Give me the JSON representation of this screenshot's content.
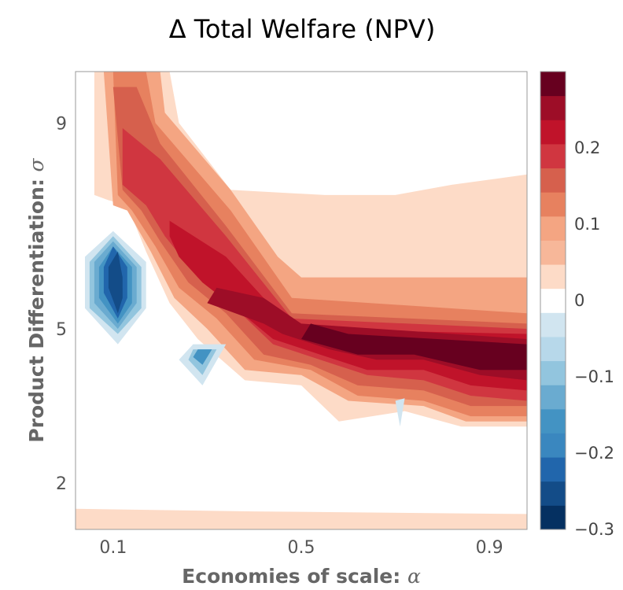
{
  "chart_data": {
    "type": "contour",
    "title": "Δ Total Welfare (NPV)",
    "xlabel_text": "Economies of scale: ",
    "xlabel_symbol": "α",
    "ylabel_text": "Product Differentiation: ",
    "ylabel_symbol": "σ",
    "x_ticks": [
      0.1,
      0.5,
      0.9
    ],
    "x_tick_labels": [
      "0.1",
      "0.5",
      "0.9"
    ],
    "xlim": [
      0.02,
      0.98
    ],
    "y_ticks": [
      2,
      5,
      9
    ],
    "y_tick_labels": [
      "2",
      "5",
      "9"
    ],
    "ylim": [
      1.1,
      10.0
    ],
    "colorbar": {
      "range": [
        -0.3,
        0.3
      ],
      "ticks": [
        -0.3,
        -0.2,
        -0.1,
        0,
        0.1,
        0.2
      ],
      "tick_labels": [
        "−0.3",
        "−0.2",
        "−0.1",
        "0",
        "0.1",
        "0.2"
      ],
      "colors": [
        "#053061",
        "#134c88",
        "#2166ac",
        "#3a87bf",
        "#4393c3",
        "#6aabd0",
        "#92c5de",
        "#b7d8ea",
        "#d1e5f0",
        "#ffffff",
        "#fddbc7",
        "#f7b799",
        "#f4a582",
        "#e7815f",
        "#d6604d",
        "#d03640",
        "#c0132a",
        "#9d0d27",
        "#67001f"
      ]
    },
    "contour_levels": [
      {
        "value": 0.033,
        "color": "#fddbc7",
        "region": [
          [
            0.06,
            10.0
          ],
          [
            0.22,
            10.0
          ],
          [
            0.24,
            9.0
          ],
          [
            0.35,
            7.7
          ],
          [
            0.55,
            7.6
          ],
          [
            0.7,
            7.6
          ],
          [
            0.82,
            7.8
          ],
          [
            0.98,
            8.0
          ],
          [
            0.98,
            3.1
          ],
          [
            0.84,
            3.1
          ],
          [
            0.72,
            3.4
          ],
          [
            0.58,
            3.2
          ],
          [
            0.5,
            3.9
          ],
          [
            0.38,
            4.0
          ],
          [
            0.28,
            4.8
          ],
          [
            0.22,
            5.5
          ],
          [
            0.17,
            6.5
          ],
          [
            0.13,
            7.4
          ],
          [
            0.09,
            7.5
          ],
          [
            0.06,
            7.6
          ]
        ]
      },
      {
        "value": 0.066,
        "color": "#f4a582",
        "region": [
          [
            0.08,
            10.0
          ],
          [
            0.2,
            10.0
          ],
          [
            0.21,
            9.2
          ],
          [
            0.35,
            7.7
          ],
          [
            0.45,
            6.4
          ],
          [
            0.5,
            6.0
          ],
          [
            0.98,
            6.0
          ],
          [
            0.98,
            3.2
          ],
          [
            0.85,
            3.2
          ],
          [
            0.76,
            3.5
          ],
          [
            0.6,
            3.6
          ],
          [
            0.5,
            4.1
          ],
          [
            0.38,
            4.2
          ],
          [
            0.3,
            5.0
          ],
          [
            0.23,
            5.6
          ],
          [
            0.18,
            6.5
          ],
          [
            0.13,
            7.3
          ],
          [
            0.1,
            7.4
          ]
        ]
      },
      {
        "value": 0.1,
        "color": "#e7815f",
        "region": [
          [
            0.1,
            10.0
          ],
          [
            0.17,
            10.0
          ],
          [
            0.19,
            9.0
          ],
          [
            0.35,
            7.3
          ],
          [
            0.48,
            5.6
          ],
          [
            0.98,
            5.3
          ],
          [
            0.98,
            3.3
          ],
          [
            0.86,
            3.3
          ],
          [
            0.76,
            3.6
          ],
          [
            0.62,
            3.7
          ],
          [
            0.52,
            4.2
          ],
          [
            0.4,
            4.4
          ],
          [
            0.32,
            5.2
          ],
          [
            0.24,
            5.8
          ],
          [
            0.19,
            6.6
          ],
          [
            0.14,
            7.3
          ],
          [
            0.11,
            7.6
          ]
        ]
      },
      {
        "value": 0.133,
        "color": "#d6604d",
        "region": [
          [
            0.1,
            9.7
          ],
          [
            0.15,
            9.7
          ],
          [
            0.2,
            8.6
          ],
          [
            0.34,
            7.0
          ],
          [
            0.48,
            5.3
          ],
          [
            0.98,
            5.1
          ],
          [
            0.98,
            3.5
          ],
          [
            0.86,
            3.5
          ],
          [
            0.76,
            3.8
          ],
          [
            0.62,
            3.9
          ],
          [
            0.52,
            4.3
          ],
          [
            0.42,
            4.5
          ],
          [
            0.34,
            5.3
          ],
          [
            0.26,
            5.9
          ],
          [
            0.2,
            6.7
          ],
          [
            0.16,
            7.3
          ],
          [
            0.12,
            7.7
          ]
        ]
      },
      {
        "value": 0.166,
        "color": "#d03640",
        "region": [
          [
            0.12,
            8.9
          ],
          [
            0.2,
            8.3
          ],
          [
            0.34,
            6.8
          ],
          [
            0.48,
            5.2
          ],
          [
            0.98,
            5.0
          ],
          [
            0.98,
            3.6
          ],
          [
            0.86,
            3.7
          ],
          [
            0.76,
            4.0
          ],
          [
            0.64,
            4.1
          ],
          [
            0.54,
            4.4
          ],
          [
            0.44,
            4.7
          ],
          [
            0.36,
            5.4
          ],
          [
            0.28,
            6.0
          ],
          [
            0.21,
            6.8
          ],
          [
            0.17,
            7.4
          ],
          [
            0.12,
            7.8
          ]
        ]
      },
      {
        "value": 0.2,
        "color": "#c0132a",
        "region": [
          [
            0.22,
            7.1
          ],
          [
            0.34,
            6.4
          ],
          [
            0.48,
            5.0
          ],
          [
            0.98,
            4.9
          ],
          [
            0.98,
            3.8
          ],
          [
            0.86,
            3.9
          ],
          [
            0.76,
            4.2
          ],
          [
            0.64,
            4.2
          ],
          [
            0.54,
            4.5
          ],
          [
            0.44,
            4.8
          ],
          [
            0.36,
            5.4
          ],
          [
            0.29,
            5.9
          ],
          [
            0.24,
            6.4
          ],
          [
            0.22,
            6.8
          ]
        ]
      },
      {
        "value": 0.233,
        "color": "#9d0d27",
        "region": [
          [
            0.32,
            5.8
          ],
          [
            0.42,
            5.6
          ],
          [
            0.5,
            5.1
          ],
          [
            0.98,
            4.8
          ],
          [
            0.98,
            4.0
          ],
          [
            0.88,
            4.1
          ],
          [
            0.76,
            4.4
          ],
          [
            0.66,
            4.4
          ],
          [
            0.56,
            4.6
          ],
          [
            0.46,
            4.9
          ],
          [
            0.42,
            5.1
          ],
          [
            0.33,
            5.4
          ],
          [
            0.3,
            5.5
          ]
        ]
      },
      {
        "value": 0.266,
        "color": "#67001f",
        "region": [
          [
            0.52,
            5.1
          ],
          [
            0.6,
            4.9
          ],
          [
            0.98,
            4.7
          ],
          [
            0.98,
            4.2
          ],
          [
            0.88,
            4.2
          ],
          [
            0.74,
            4.5
          ],
          [
            0.62,
            4.5
          ],
          [
            0.5,
            4.8
          ]
        ]
      }
    ],
    "negative_regions": [
      {
        "value": -0.033,
        "color": "#d1e5f0",
        "points": [
          [
            0.1,
            6.9
          ],
          [
            0.17,
            6.3
          ],
          [
            0.17,
            5.4
          ],
          [
            0.11,
            4.7
          ],
          [
            0.04,
            5.4
          ],
          [
            0.04,
            6.4
          ]
        ]
      },
      {
        "value": -0.066,
        "color": "#92c5de",
        "points": [
          [
            0.1,
            6.8
          ],
          [
            0.16,
            6.2
          ],
          [
            0.16,
            5.4
          ],
          [
            0.11,
            4.9
          ],
          [
            0.05,
            5.4
          ],
          [
            0.05,
            6.3
          ]
        ]
      },
      {
        "value": -0.1,
        "color": "#6aabd0",
        "points": [
          [
            0.1,
            6.7
          ],
          [
            0.15,
            6.2
          ],
          [
            0.15,
            5.5
          ],
          [
            0.11,
            5.0
          ],
          [
            0.06,
            5.5
          ],
          [
            0.06,
            6.3
          ]
        ]
      },
      {
        "value": -0.133,
        "color": "#4393c3",
        "points": [
          [
            0.1,
            6.6
          ],
          [
            0.14,
            6.2
          ],
          [
            0.14,
            5.5
          ],
          [
            0.11,
            5.1
          ],
          [
            0.07,
            5.6
          ],
          [
            0.07,
            6.2
          ]
        ]
      },
      {
        "value": -0.166,
        "color": "#2166ac",
        "points": [
          [
            0.1,
            6.6
          ],
          [
            0.13,
            6.2
          ],
          [
            0.13,
            5.6
          ],
          [
            0.11,
            5.2
          ],
          [
            0.08,
            5.7
          ],
          [
            0.08,
            6.2
          ]
        ]
      },
      {
        "value": -0.2,
        "color": "#134c88",
        "points": [
          [
            0.11,
            6.5
          ],
          [
            0.12,
            6.0
          ],
          [
            0.12,
            5.6
          ],
          [
            0.11,
            5.3
          ],
          [
            0.09,
            5.8
          ],
          [
            0.09,
            6.2
          ]
        ]
      },
      {
        "value": -0.033,
        "color": "#d1e5f0",
        "points": [
          [
            0.27,
            4.7
          ],
          [
            0.34,
            4.7
          ],
          [
            0.29,
            3.9
          ],
          [
            0.24,
            4.4
          ]
        ]
      },
      {
        "value": -0.066,
        "color": "#92c5de",
        "points": [
          [
            0.27,
            4.6
          ],
          [
            0.32,
            4.6
          ],
          [
            0.29,
            4.1
          ],
          [
            0.26,
            4.4
          ]
        ]
      },
      {
        "value": -0.1,
        "color": "#4393c3",
        "points": [
          [
            0.28,
            4.6
          ],
          [
            0.31,
            4.6
          ],
          [
            0.29,
            4.3
          ],
          [
            0.27,
            4.45
          ]
        ]
      },
      {
        "value": -0.033,
        "color": "#d1e5f0",
        "points": [
          [
            0.7,
            3.6
          ],
          [
            0.72,
            3.65
          ],
          [
            0.71,
            3.1
          ]
        ]
      }
    ]
  }
}
